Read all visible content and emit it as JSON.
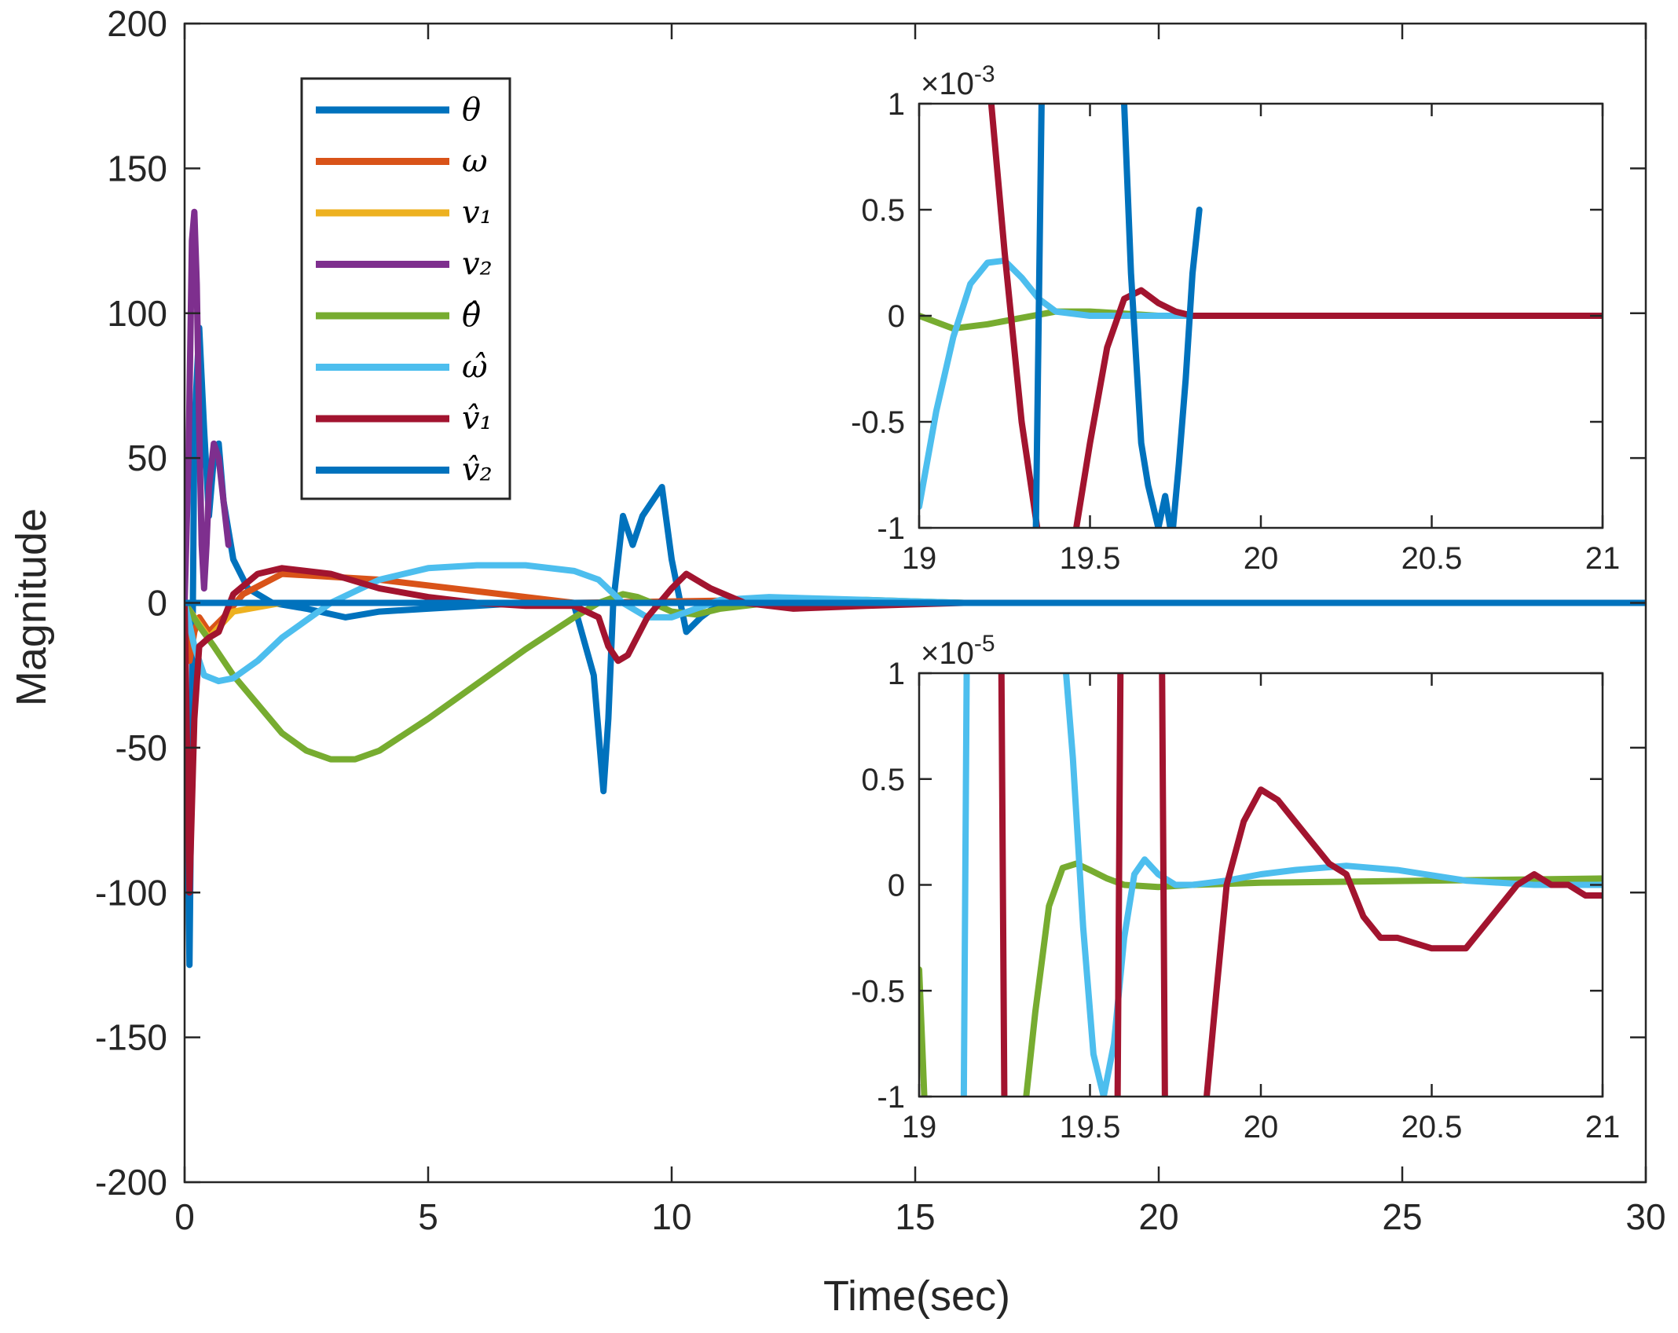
{
  "chart_data": [
    {
      "id": "main",
      "type": "line",
      "title": "",
      "xlabel": "Time(sec)",
      "ylabel": "Magnitude",
      "xlim": [
        0,
        30
      ],
      "ylim": [
        -200,
        200
      ],
      "xticks": [
        0,
        5,
        10,
        15,
        20,
        25,
        30
      ],
      "yticks": [
        -200,
        -150,
        -100,
        -50,
        0,
        50,
        100,
        150,
        200
      ],
      "xtick_labels": [
        "0",
        "5",
        "10",
        "15",
        "20",
        "25",
        "30"
      ],
      "ytick_labels": [
        "-200",
        "-150",
        "-100",
        "-50",
        "0",
        "50",
        "100",
        "150",
        "200"
      ],
      "legend_position": "top-left",
      "series": [
        {
          "key": "theta",
          "name": "θ",
          "color": "#0072BD",
          "x": [
            0,
            0.05,
            0.1,
            0.15,
            0.2,
            0.3,
            0.4,
            0.5,
            0.6,
            0.7,
            0.8,
            1.0,
            1.3,
            1.8,
            2.5,
            3.3,
            4,
            5,
            6,
            7,
            8,
            8.4,
            8.6,
            8.7,
            8.8,
            9.0,
            9.2,
            9.4,
            9.6,
            9.8,
            10.0,
            10.3,
            10.6,
            11,
            12,
            14,
            16,
            20,
            25,
            30
          ],
          "y": [
            0,
            -60,
            -125,
            -40,
            60,
            95,
            60,
            30,
            50,
            55,
            35,
            15,
            5,
            0,
            -2,
            -5,
            -3,
            -2,
            -1,
            0,
            -1,
            -25,
            -65,
            -40,
            0,
            30,
            20,
            30,
            35,
            40,
            15,
            -10,
            -5,
            0,
            1,
            0,
            0,
            0,
            0,
            0
          ]
        },
        {
          "key": "omega",
          "name": "ω",
          "color": "#D95319",
          "x": [
            0,
            0.1,
            0.2,
            0.3,
            0.5,
            0.8,
            1.2,
            2,
            4,
            8,
            12,
            16,
            20,
            25,
            30
          ],
          "y": [
            0,
            -20,
            -10,
            -5,
            -10,
            -5,
            3,
            10,
            8,
            0,
            1,
            0,
            0,
            0,
            0
          ]
        },
        {
          "key": "v1",
          "name": "v₁",
          "color": "#EDB120",
          "x": [
            0,
            0.2,
            0.5,
            1,
            2,
            5,
            10,
            20,
            30
          ],
          "y": [
            0,
            -5,
            -12,
            -3,
            0,
            0,
            0,
            0,
            0
          ]
        },
        {
          "key": "v2",
          "name": "v₂",
          "color": "#7E2F8E",
          "x": [
            0,
            0.08,
            0.15,
            0.2,
            0.25,
            0.3,
            0.35,
            0.4,
            0.45,
            0.5,
            0.6,
            0.7,
            0.8,
            0.9
          ],
          "y": [
            0,
            50,
            125,
            135,
            110,
            60,
            20,
            5,
            20,
            40,
            55,
            50,
            35,
            20
          ]
        },
        {
          "key": "theta_hat",
          "name": "θ̂",
          "color": "#77AC30",
          "x": [
            0,
            0.3,
            0.6,
            1,
            1.5,
            2,
            2.5,
            3,
            3.5,
            4,
            5,
            6,
            7,
            8,
            8.5,
            9,
            9.3,
            9.6,
            10,
            10.5,
            11,
            12,
            14,
            16,
            20,
            30
          ],
          "y": [
            0,
            -8,
            -15,
            -25,
            -35,
            -45,
            -51,
            -54,
            -54,
            -51,
            -40,
            -28,
            -16,
            -5,
            0,
            3,
            2,
            0,
            -3,
            -4,
            -2,
            0,
            1,
            0,
            0,
            0
          ]
        },
        {
          "key": "omega_hat",
          "name": "ω̂",
          "color": "#4DBEEE",
          "x": [
            0,
            0.2,
            0.4,
            0.7,
            1.0,
            1.5,
            2,
            3,
            4,
            5,
            6,
            7,
            8,
            8.5,
            9.0,
            9.5,
            10.0,
            10.5,
            11,
            12,
            14,
            16,
            20,
            30
          ],
          "y": [
            0,
            -15,
            -25,
            -27,
            -26,
            -20,
            -12,
            0,
            8,
            12,
            13,
            13,
            11,
            8,
            0,
            -5,
            -5,
            -2,
            1,
            2,
            1,
            0,
            0,
            0
          ]
        },
        {
          "key": "v1_hat",
          "name": "v̂₁",
          "color": "#A2142F",
          "x": [
            0,
            0.1,
            0.2,
            0.3,
            0.5,
            0.7,
            1,
            1.5,
            2,
            3,
            4,
            5,
            6,
            7,
            8,
            8.5,
            8.7,
            8.9,
            9.1,
            9.5,
            10,
            10.3,
            10.8,
            11.5,
            12.5,
            14,
            16,
            20,
            30
          ],
          "y": [
            0,
            -100,
            -40,
            -15,
            -12,
            -10,
            3,
            10,
            12,
            10,
            5,
            2,
            0,
            -1,
            -1,
            -5,
            -15,
            -20,
            -18,
            -5,
            5,
            10,
            5,
            0,
            -2,
            -1,
            0,
            0,
            0
          ]
        },
        {
          "key": "v2_hat",
          "name": "v̂₂",
          "color": "#0072BD",
          "x": [
            0,
            5,
            10,
            20,
            30
          ],
          "y": [
            0,
            0,
            0,
            0,
            0
          ]
        }
      ]
    },
    {
      "id": "inset_top",
      "type": "line",
      "multiplier_label": "×10",
      "multiplier_exponent": "-3",
      "xlim": [
        19,
        21
      ],
      "ylim": [
        -1,
        1
      ],
      "xticks": [
        19,
        19.5,
        20,
        20.5,
        21
      ],
      "yticks": [
        -1,
        -0.5,
        0,
        0.5,
        1
      ],
      "xtick_labels": [
        "19",
        "19.5",
        "20",
        "20.5",
        "21"
      ],
      "ytick_labels": [
        "-1",
        "-0.5",
        "0",
        "0.5",
        "1"
      ],
      "series": [
        {
          "key": "theta_hat",
          "color": "#77AC30",
          "x": [
            19,
            19.1,
            19.2,
            19.3,
            19.4,
            19.5,
            19.6,
            19.7,
            21
          ],
          "y": [
            0,
            -0.06,
            -0.04,
            -0.01,
            0.02,
            0.02,
            0.01,
            0,
            0
          ]
        },
        {
          "key": "omega_hat",
          "color": "#4DBEEE",
          "x": [
            19.0,
            19.05,
            19.1,
            19.15,
            19.2,
            19.25,
            19.3,
            19.35,
            19.4,
            19.5,
            19.6,
            19.7,
            21
          ],
          "y": [
            -0.9,
            -0.45,
            -0.1,
            0.15,
            0.25,
            0.26,
            0.18,
            0.08,
            0.02,
            0,
            0,
            0,
            0
          ]
        },
        {
          "key": "v1_hat",
          "color": "#A2142F",
          "x": [
            19.2,
            19.25,
            19.3,
            19.35,
            19.4,
            19.45,
            19.5,
            19.55,
            19.6,
            19.65,
            19.7,
            19.75,
            19.8,
            19.9,
            21
          ],
          "y": [
            1.2,
            0.3,
            -0.5,
            -1.05,
            -1.2,
            -1.1,
            -0.6,
            -0.15,
            0.08,
            0.12,
            0.06,
            0.02,
            0,
            0,
            0
          ]
        },
        {
          "key": "v2_hat",
          "color": "#0072BD",
          "x": [
            19.34,
            19.36,
            19.38,
            19.55,
            19.6,
            19.62,
            19.65,
            19.67,
            19.7,
            19.72,
            19.74,
            19.76,
            19.78,
            19.8,
            19.82
          ],
          "y": [
            -1.2,
            1.2,
            1.2,
            1.2,
            1.0,
            0.2,
            -0.6,
            -0.8,
            -1.0,
            -0.85,
            -1.05,
            -0.7,
            -0.3,
            0.2,
            0.5
          ]
        }
      ]
    },
    {
      "id": "inset_bottom",
      "type": "line",
      "multiplier_label": "×10",
      "multiplier_exponent": "-5",
      "xlim": [
        19,
        21
      ],
      "ylim": [
        -1,
        1
      ],
      "xticks": [
        19,
        19.5,
        20,
        20.5,
        21
      ],
      "yticks": [
        -1,
        -0.5,
        0,
        0.5,
        1
      ],
      "xtick_labels": [
        "19",
        "19.5",
        "20",
        "20.5",
        "21"
      ],
      "ytick_labels": [
        "-1",
        "-0.5",
        "0",
        "0.5",
        "1"
      ],
      "series": [
        {
          "key": "theta_hat",
          "color": "#77AC30",
          "x": [
            19.0,
            19.01,
            19.02,
            19.3,
            19.34,
            19.38,
            19.42,
            19.46,
            19.5,
            19.55,
            19.6,
            19.7,
            19.8,
            20,
            21
          ],
          "y": [
            -0.4,
            -0.8,
            -1.2,
            -1.2,
            -0.6,
            -0.1,
            0.08,
            0.1,
            0.07,
            0.03,
            0.0,
            -0.01,
            0,
            0.01,
            0.03
          ]
        },
        {
          "key": "omega_hat",
          "color": "#4DBEEE",
          "x": [
            19.13,
            19.14,
            19.42,
            19.45,
            19.48,
            19.51,
            19.54,
            19.57,
            19.6,
            19.63,
            19.66,
            19.7,
            19.75,
            19.8,
            19.9,
            20.0,
            20.1,
            20.25,
            20.4,
            20.6,
            20.8,
            21
          ],
          "y": [
            -1.2,
            1.2,
            1.2,
            0.6,
            -0.2,
            -0.8,
            -1.0,
            -0.75,
            -0.25,
            0.05,
            0.12,
            0.05,
            0.0,
            0.0,
            0.02,
            0.05,
            0.07,
            0.09,
            0.07,
            0.02,
            0.0,
            0.0
          ]
        },
        {
          "key": "v1_hat",
          "color": "#A2142F",
          "x": [
            19.24,
            19.25,
            19.58,
            19.59,
            19.71,
            19.72,
            19.83,
            19.87,
            19.9,
            19.95,
            20.0,
            20.05,
            20.1,
            20.15,
            20.2,
            20.25,
            20.3,
            20.35,
            20.4,
            20.5,
            20.6,
            20.7,
            20.75,
            20.8,
            20.85,
            20.9,
            20.95,
            21.0
          ],
          "y": [
            1.2,
            -1.2,
            -1.2,
            1.2,
            1.2,
            -1.2,
            -1.2,
            -0.5,
            0.0,
            0.3,
            0.45,
            0.4,
            0.3,
            0.2,
            0.1,
            0.05,
            -0.15,
            -0.25,
            -0.25,
            -0.3,
            -0.3,
            -0.1,
            0.0,
            0.05,
            0.0,
            0.0,
            -0.05,
            -0.05
          ]
        }
      ]
    }
  ]
}
